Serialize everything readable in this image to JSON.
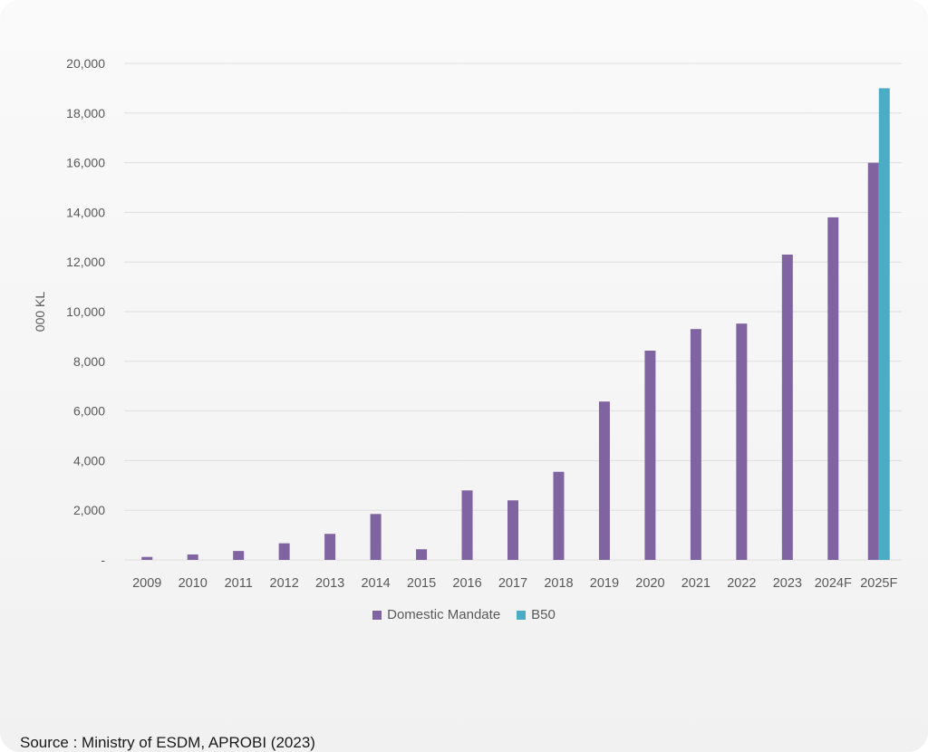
{
  "chart_data": {
    "type": "bar",
    "categories": [
      "2009",
      "2010",
      "2011",
      "2012",
      "2013",
      "2014",
      "2015",
      "2016",
      "2017",
      "2018",
      "2019",
      "2020",
      "2021",
      "2022",
      "2023",
      "2024F",
      "2025F"
    ],
    "series": [
      {
        "name": "Domestic Mandate",
        "color": "#8064a2",
        "values": [
          120,
          220,
          360,
          670,
          1050,
          1850,
          430,
          2800,
          2400,
          3550,
          6380,
          8430,
          9300,
          9520,
          12300,
          13800,
          16000
        ]
      },
      {
        "name": "B50",
        "color": "#4bacc6",
        "values": [
          null,
          null,
          null,
          null,
          null,
          null,
          null,
          null,
          null,
          null,
          null,
          null,
          null,
          null,
          null,
          null,
          19000
        ]
      }
    ],
    "ylabel": "000 KL",
    "ylim": [
      0,
      20000
    ],
    "yticks": [
      0,
      2000,
      4000,
      6000,
      8000,
      10000,
      12000,
      14000,
      16000,
      18000,
      20000
    ],
    "ytick_labels": [
      "-",
      "2,000",
      "4,000",
      "6,000",
      "8,000",
      "10,000",
      "12,000",
      "14,000",
      "16,000",
      "18,000",
      "20,000"
    ],
    "grid": true,
    "legend_position": "bottom"
  },
  "source_text": "Source : Ministry of ESDM, APROBI  (2023)"
}
